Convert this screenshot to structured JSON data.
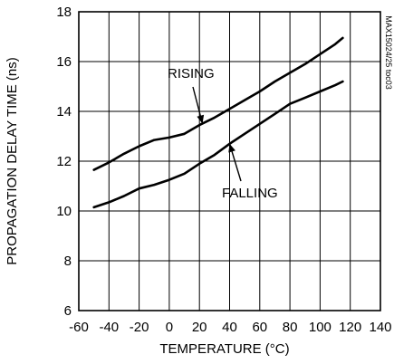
{
  "chart_data": {
    "type": "line",
    "title": "",
    "xlabel": "TEMPERATURE (°C)",
    "ylabel": "PROPAGATION DELAY TIME (ns)",
    "xlim": [
      -60,
      140
    ],
    "ylim": [
      6,
      18
    ],
    "xticks": [
      -60,
      -40,
      -20,
      0,
      20,
      40,
      60,
      80,
      100,
      120,
      140
    ],
    "yticks": [
      6,
      8,
      10,
      12,
      14,
      16,
      18
    ],
    "x_tick_labels": [
      "-60",
      "-40",
      "-20",
      "0",
      "20",
      "40",
      "60",
      "80",
      "100",
      "120",
      "140"
    ],
    "y_tick_labels": [
      "6",
      "8",
      "10",
      "12",
      "14",
      "16",
      "18"
    ],
    "grid": true,
    "series": [
      {
        "name": "RISING",
        "x": [
          -50,
          -40,
          -30,
          -20,
          -10,
          0,
          10,
          20,
          30,
          40,
          50,
          60,
          70,
          80,
          90,
          100,
          110,
          115
        ],
        "y": [
          11.65,
          11.95,
          12.3,
          12.6,
          12.85,
          12.95,
          13.1,
          13.45,
          13.75,
          14.1,
          14.45,
          14.8,
          15.2,
          15.55,
          15.9,
          16.3,
          16.7,
          16.95
        ]
      },
      {
        "name": "FALLING",
        "x": [
          -50,
          -40,
          -30,
          -20,
          -10,
          0,
          10,
          20,
          30,
          40,
          50,
          60,
          70,
          80,
          90,
          100,
          110,
          115
        ],
        "y": [
          10.15,
          10.35,
          10.6,
          10.9,
          11.05,
          11.25,
          11.5,
          11.9,
          12.25,
          12.7,
          13.1,
          13.5,
          13.9,
          14.3,
          14.55,
          14.8,
          15.05,
          15.2
        ]
      }
    ],
    "annotations": [
      {
        "text": "RISING",
        "target_series": "RISING",
        "target_x": 22
      },
      {
        "text": "FALLING",
        "target_series": "FALLING",
        "target_x": 40
      }
    ],
    "side_label": "MAX15024/25 toc03"
  }
}
